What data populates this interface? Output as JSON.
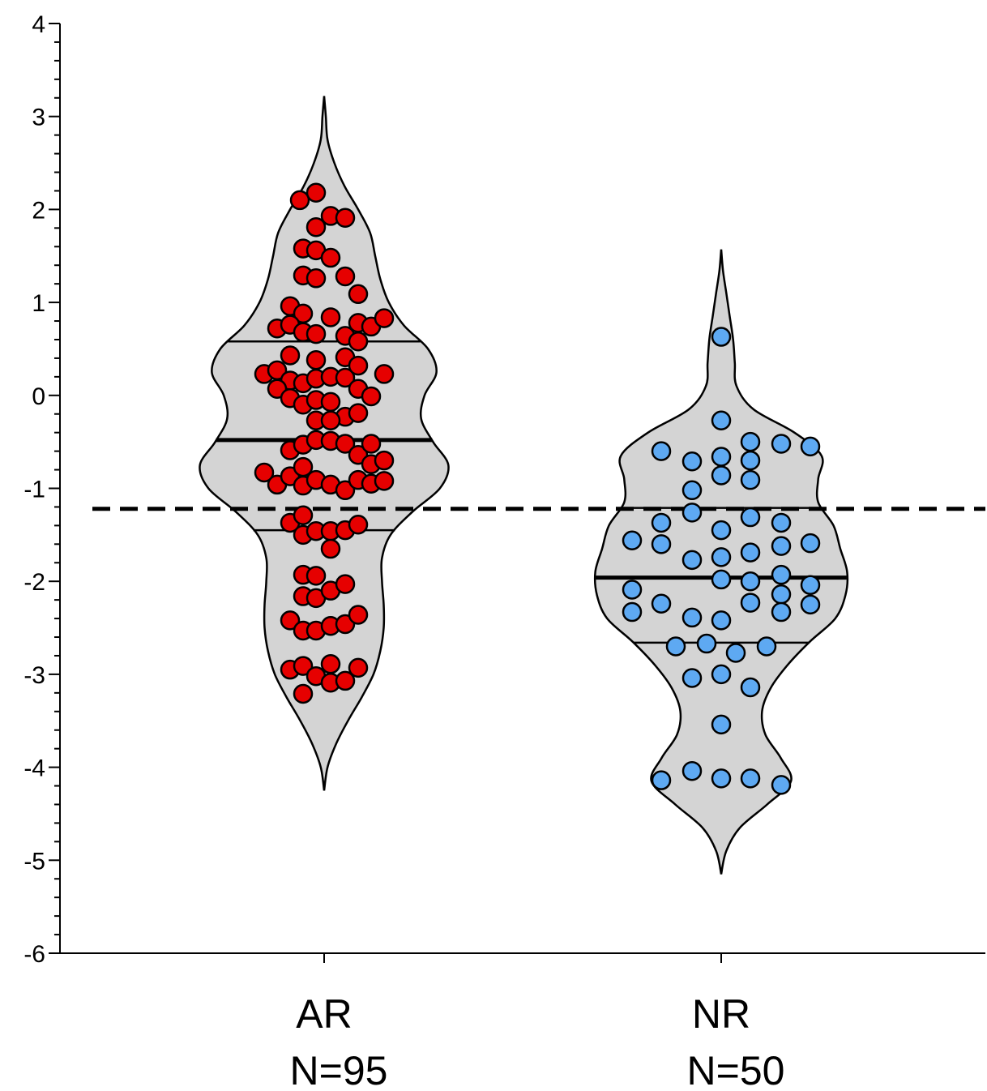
{
  "chart_data": {
    "type": "violin",
    "title": "",
    "xlabel": "",
    "ylabel": "",
    "ylim": [
      -6,
      4
    ],
    "yticks": [
      "4",
      "3",
      "2",
      "1",
      "0",
      "-1",
      "-2",
      "-3",
      "-4",
      "-5",
      "-6"
    ],
    "reference_line": {
      "y": -1.22,
      "style": "dashed"
    },
    "violin_fill": "#d4d4d4",
    "categories": [
      "AR",
      "NR"
    ],
    "groups": [
      {
        "label": "AR",
        "n_label": "N=95",
        "color": "#e60000",
        "median": -0.48,
        "q1": -1.45,
        "q3": 0.58,
        "min": -4.25,
        "max": 3.22,
        "density": [
          [
            -4.25,
            0.0
          ],
          [
            -4.0,
            0.02
          ],
          [
            -3.75,
            0.07
          ],
          [
            -3.5,
            0.14
          ],
          [
            -3.25,
            0.22
          ],
          [
            -3.0,
            0.29
          ],
          [
            -2.75,
            0.33
          ],
          [
            -2.5,
            0.35
          ],
          [
            -2.25,
            0.35
          ],
          [
            -2.0,
            0.34
          ],
          [
            -1.75,
            0.34
          ],
          [
            -1.5,
            0.39
          ],
          [
            -1.25,
            0.52
          ],
          [
            -1.0,
            0.68
          ],
          [
            -0.75,
            0.73
          ],
          [
            -0.5,
            0.64
          ],
          [
            -0.25,
            0.57
          ],
          [
            0.0,
            0.59
          ],
          [
            0.25,
            0.66
          ],
          [
            0.5,
            0.61
          ],
          [
            0.75,
            0.47
          ],
          [
            1.0,
            0.38
          ],
          [
            1.25,
            0.33
          ],
          [
            1.5,
            0.3
          ],
          [
            1.75,
            0.27
          ],
          [
            2.0,
            0.2
          ],
          [
            2.25,
            0.12
          ],
          [
            2.5,
            0.06
          ],
          [
            2.75,
            0.02
          ],
          [
            3.0,
            0.01
          ],
          [
            3.22,
            0.0
          ]
        ],
        "points": [
          [
            -0.75,
            2.1
          ],
          [
            -0.25,
            2.18
          ],
          [
            0.2,
            1.93
          ],
          [
            0.65,
            1.91
          ],
          [
            -0.25,
            1.81
          ],
          [
            -0.65,
            1.58
          ],
          [
            -0.25,
            1.56
          ],
          [
            0.2,
            1.48
          ],
          [
            -0.65,
            1.29
          ],
          [
            -0.25,
            1.26
          ],
          [
            0.65,
            1.28
          ],
          [
            1.05,
            1.09
          ],
          [
            -1.05,
            0.96
          ],
          [
            -0.65,
            0.88
          ],
          [
            0.2,
            0.84
          ],
          [
            -1.45,
            0.72
          ],
          [
            -1.05,
            0.76
          ],
          [
            -0.65,
            0.68
          ],
          [
            -0.25,
            0.66
          ],
          [
            0.65,
            0.64
          ],
          [
            1.05,
            0.78
          ],
          [
            1.45,
            0.74
          ],
          [
            1.85,
            0.83
          ],
          [
            -1.05,
            0.43
          ],
          [
            -0.25,
            0.38
          ],
          [
            0.65,
            0.41
          ],
          [
            1.05,
            0.58
          ],
          [
            -1.85,
            0.23
          ],
          [
            -1.45,
            0.27
          ],
          [
            -1.05,
            0.16
          ],
          [
            -0.65,
            0.13
          ],
          [
            -0.25,
            0.18
          ],
          [
            0.2,
            0.2
          ],
          [
            0.65,
            0.19
          ],
          [
            1.05,
            0.32
          ],
          [
            1.85,
            0.23
          ],
          [
            -1.45,
            0.07
          ],
          [
            -1.05,
            -0.03
          ],
          [
            -0.65,
            -0.1
          ],
          [
            -0.25,
            -0.05
          ],
          [
            0.2,
            -0.07
          ],
          [
            0.65,
            -0.23
          ],
          [
            1.05,
            0.07
          ],
          [
            1.45,
            -0.01
          ],
          [
            1.05,
            -0.19
          ],
          [
            -0.25,
            -0.27
          ],
          [
            0.2,
            -0.27
          ],
          [
            -1.05,
            -0.59
          ],
          [
            -0.65,
            -0.53
          ],
          [
            -0.25,
            -0.48
          ],
          [
            0.2,
            -0.49
          ],
          [
            0.65,
            -0.52
          ],
          [
            1.05,
            -0.64
          ],
          [
            1.45,
            -0.52
          ],
          [
            -1.85,
            -0.83
          ],
          [
            -1.45,
            -0.96
          ],
          [
            -1.05,
            -0.87
          ],
          [
            -0.65,
            -0.77
          ],
          [
            -0.65,
            -0.97
          ],
          [
            -0.25,
            -0.91
          ],
          [
            0.2,
            -0.96
          ],
          [
            0.65,
            -1.02
          ],
          [
            1.05,
            -0.91
          ],
          [
            1.45,
            -0.95
          ],
          [
            1.45,
            -0.74
          ],
          [
            1.85,
            -0.7
          ],
          [
            1.85,
            -0.92
          ],
          [
            -1.05,
            -1.37
          ],
          [
            -0.65,
            -1.29
          ],
          [
            -0.65,
            -1.5
          ],
          [
            -0.25,
            -1.46
          ],
          [
            0.2,
            -1.46
          ],
          [
            0.65,
            -1.45
          ],
          [
            1.05,
            -1.39
          ],
          [
            0.2,
            -1.65
          ],
          [
            -0.65,
            -1.93
          ],
          [
            -0.65,
            -2.16
          ],
          [
            -0.25,
            -1.94
          ],
          [
            -0.25,
            -2.18
          ],
          [
            0.2,
            -2.1
          ],
          [
            0.65,
            -2.03
          ],
          [
            -1.05,
            -2.42
          ],
          [
            -0.65,
            -2.53
          ],
          [
            -0.25,
            -2.53
          ],
          [
            0.2,
            -2.48
          ],
          [
            0.65,
            -2.46
          ],
          [
            1.05,
            -2.36
          ],
          [
            -1.05,
            -2.95
          ],
          [
            -0.65,
            -2.91
          ],
          [
            -0.25,
            -3.02
          ],
          [
            0.2,
            -2.89
          ],
          [
            0.2,
            -3.09
          ],
          [
            0.65,
            -3.07
          ],
          [
            1.05,
            -2.93
          ],
          [
            -0.65,
            -3.21
          ]
        ]
      },
      {
        "label": "NR",
        "n_label": "N=50",
        "color": "#5ea9f2",
        "median": -1.96,
        "q1": -2.66,
        "q3": -1.21,
        "min": -5.15,
        "max": 1.57,
        "density": [
          [
            -5.15,
            0.0
          ],
          [
            -4.9,
            0.03
          ],
          [
            -4.65,
            0.11
          ],
          [
            -4.4,
            0.27
          ],
          [
            -4.15,
            0.41
          ],
          [
            -3.9,
            0.35
          ],
          [
            -3.65,
            0.26
          ],
          [
            -3.4,
            0.24
          ],
          [
            -3.15,
            0.29
          ],
          [
            -2.9,
            0.39
          ],
          [
            -2.65,
            0.52
          ],
          [
            -2.4,
            0.67
          ],
          [
            -2.15,
            0.73
          ],
          [
            -1.9,
            0.74
          ],
          [
            -1.65,
            0.7
          ],
          [
            -1.4,
            0.66
          ],
          [
            -1.15,
            0.57
          ],
          [
            -0.9,
            0.57
          ],
          [
            -0.65,
            0.59
          ],
          [
            -0.4,
            0.43
          ],
          [
            -0.15,
            0.19
          ],
          [
            0.1,
            0.09
          ],
          [
            0.35,
            0.08
          ],
          [
            0.6,
            0.07
          ],
          [
            0.85,
            0.05
          ],
          [
            1.1,
            0.03
          ],
          [
            1.35,
            0.01
          ],
          [
            1.57,
            0.0
          ]
        ],
        "points": [
          [
            0.0,
            0.63
          ],
          [
            0.0,
            -0.27
          ],
          [
            -1.85,
            -0.6
          ],
          [
            -0.9,
            -0.71
          ],
          [
            0.0,
            -0.66
          ],
          [
            0.9,
            -0.5
          ],
          [
            0.9,
            -0.7
          ],
          [
            1.85,
            -0.52
          ],
          [
            2.75,
            -0.55
          ],
          [
            0.0,
            -0.86
          ],
          [
            0.9,
            -0.91
          ],
          [
            -0.9,
            -1.02
          ],
          [
            -0.9,
            -1.26
          ],
          [
            -1.85,
            -1.37
          ],
          [
            0.9,
            -1.31
          ],
          [
            1.85,
            -1.37
          ],
          [
            0.0,
            -1.45
          ],
          [
            -2.75,
            -1.56
          ],
          [
            -1.85,
            -1.6
          ],
          [
            0.9,
            -1.69
          ],
          [
            1.85,
            -1.62
          ],
          [
            2.75,
            -1.59
          ],
          [
            -0.9,
            -1.77
          ],
          [
            0.0,
            -1.74
          ],
          [
            -2.75,
            -2.09
          ],
          [
            0.0,
            -1.98
          ],
          [
            0.9,
            -2.0
          ],
          [
            1.85,
            -1.93
          ],
          [
            2.75,
            -2.04
          ],
          [
            -2.75,
            -2.33
          ],
          [
            -1.85,
            -2.24
          ],
          [
            0.9,
            -2.23
          ],
          [
            1.85,
            -2.14
          ],
          [
            1.85,
            -2.33
          ],
          [
            2.75,
            -2.25
          ],
          [
            -0.9,
            -2.39
          ],
          [
            0.0,
            -2.42
          ],
          [
            -1.4,
            -2.7
          ],
          [
            -0.45,
            -2.67
          ],
          [
            0.45,
            -2.77
          ],
          [
            1.4,
            -2.7
          ],
          [
            -0.9,
            -3.04
          ],
          [
            0.0,
            -3.0
          ],
          [
            0.9,
            -3.14
          ],
          [
            0.0,
            -3.54
          ],
          [
            -1.85,
            -4.14
          ],
          [
            -0.9,
            -4.04
          ],
          [
            0.0,
            -4.12
          ],
          [
            0.9,
            -4.12
          ],
          [
            1.85,
            -4.19
          ]
        ]
      }
    ]
  }
}
